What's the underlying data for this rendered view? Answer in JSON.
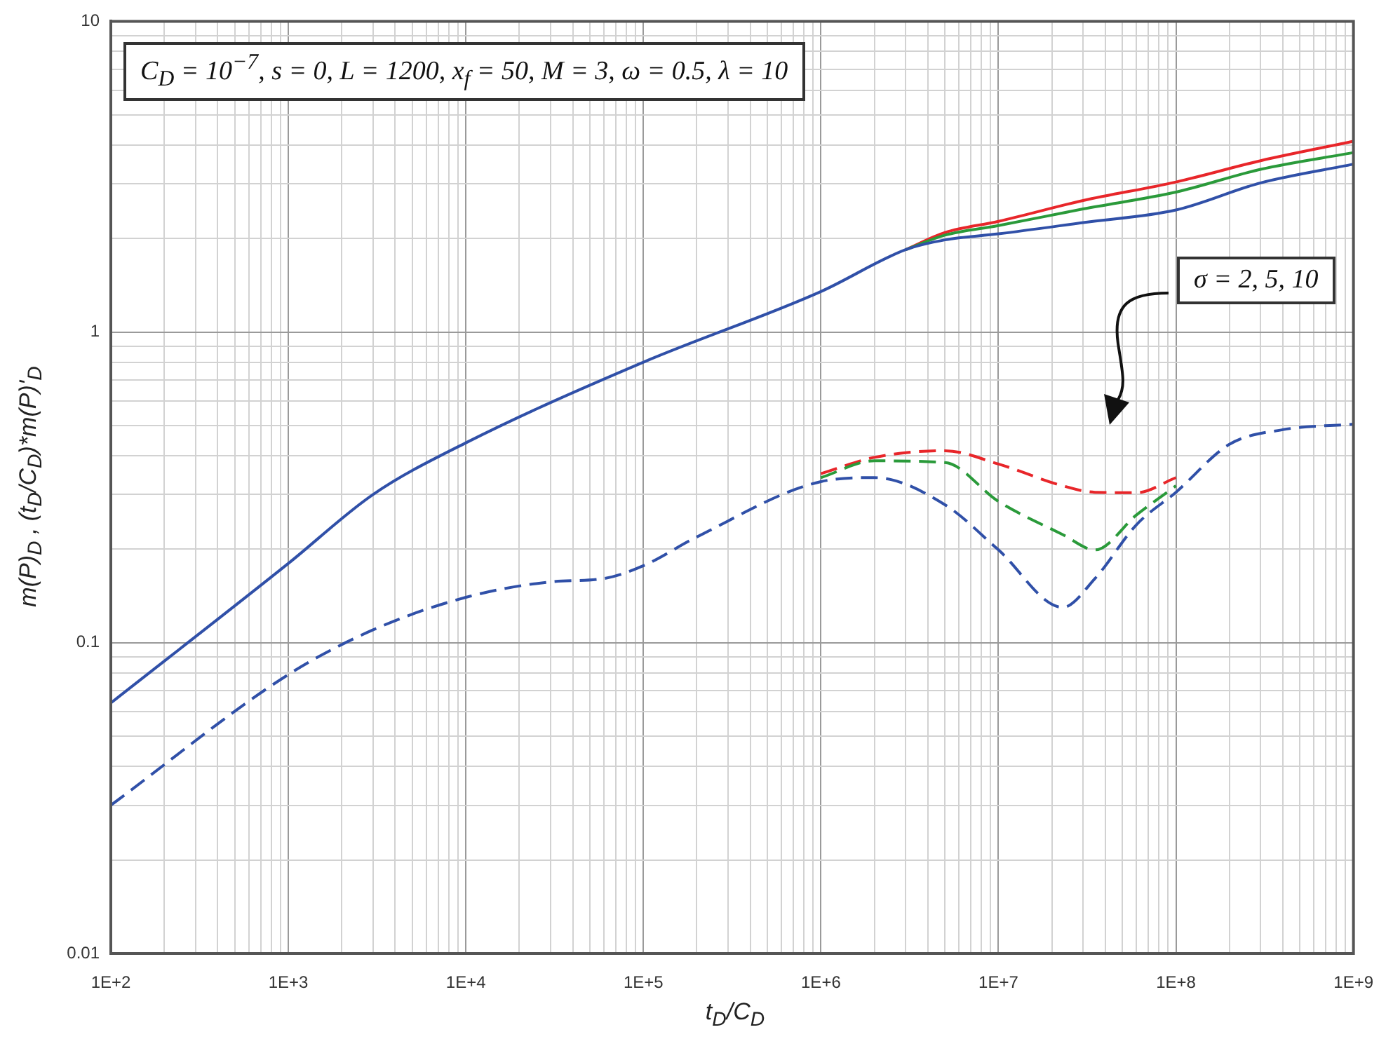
{
  "chart_data": {
    "type": "line",
    "xlabel": "t$_{D}$/C$_{D}$",
    "ylabel": "m(P)$_{D}$ , (t$_{D}$/C$_{D}$)*m(P)'$_{D}$",
    "annotations": [
      "C$_{D}$ = 10$^{−7}$, s = 0, L = 1200, x$_{f}$ = 50, M = 3, ω = 0.5, λ = 10",
      "σ = 2, 5, 10"
    ],
    "log": "xy",
    "grid": true,
    "legend": false,
    "marker": "none",
    "xlim": [
      100,
      1000000000
    ],
    "ylim": [
      0.01,
      10
    ],
    "xticks": [
      {
        "value": 100,
        "label": "1E+2"
      },
      {
        "value": 200,
        "label": null
      },
      {
        "value": 300,
        "label": null
      },
      {
        "value": 400,
        "label": null
      },
      {
        "value": 500,
        "label": null
      },
      {
        "value": 600,
        "label": null
      },
      {
        "value": 700,
        "label": null
      },
      {
        "value": 800,
        "label": null
      },
      {
        "value": 900,
        "label": null
      },
      {
        "value": 1000,
        "label": "1E+3"
      },
      {
        "value": 2000,
        "label": null
      },
      {
        "value": 3000,
        "label": null
      },
      {
        "value": 4000,
        "label": null
      },
      {
        "value": 5000,
        "label": null
      },
      {
        "value": 6000,
        "label": null
      },
      {
        "value": 7000,
        "label": null
      },
      {
        "value": 8000,
        "label": null
      },
      {
        "value": 9000,
        "label": null
      },
      {
        "value": 10000,
        "label": "1E+4"
      },
      {
        "value": 20000,
        "label": null
      },
      {
        "value": 30000,
        "label": null
      },
      {
        "value": 40000,
        "label": null
      },
      {
        "value": 50000,
        "label": null
      },
      {
        "value": 60000,
        "label": null
      },
      {
        "value": 70000,
        "label": null
      },
      {
        "value": 80000,
        "label": null
      },
      {
        "value": 90000,
        "label": null
      },
      {
        "value": 100000,
        "label": "1E+5"
      },
      {
        "value": 200000,
        "label": null
      },
      {
        "value": 300000,
        "label": null
      },
      {
        "value": 400000,
        "label": null
      },
      {
        "value": 500000,
        "label": null
      },
      {
        "value": 600000,
        "label": null
      },
      {
        "value": 700000,
        "label": null
      },
      {
        "value": 800000,
        "label": null
      },
      {
        "value": 900000,
        "label": null
      },
      {
        "value": 1000000,
        "label": "1E+6"
      },
      {
        "value": 2000000,
        "label": null
      },
      {
        "value": 3000000,
        "label": null
      },
      {
        "value": 4000000,
        "label": null
      },
      {
        "value": 5000000,
        "label": null
      },
      {
        "value": 6000000,
        "label": null
      },
      {
        "value": 7000000,
        "label": null
      },
      {
        "value": 8000000,
        "label": null
      },
      {
        "value": 9000000,
        "label": null
      },
      {
        "value": 10000000,
        "label": "1E+7"
      },
      {
        "value": 20000000,
        "label": null
      },
      {
        "value": 30000000,
        "label": null
      },
      {
        "value": 40000000,
        "label": null
      },
      {
        "value": 50000000,
        "label": null
      },
      {
        "value": 60000000,
        "label": null
      },
      {
        "value": 70000000,
        "label": null
      },
      {
        "value": 80000000,
        "label": null
      },
      {
        "value": 90000000,
        "label": null
      },
      {
        "value": 100000000,
        "label": "1E+8"
      },
      {
        "value": 200000000,
        "label": null
      },
      {
        "value": 300000000,
        "label": null
      },
      {
        "value": 400000000,
        "label": null
      },
      {
        "value": 500000000,
        "label": null
      },
      {
        "value": 600000000,
        "label": null
      },
      {
        "value": 700000000,
        "label": null
      },
      {
        "value": 800000000,
        "label": null
      },
      {
        "value": 900000000,
        "label": null
      },
      {
        "value": 1000000000,
        "label": "1E+9"
      }
    ],
    "yticks": [
      0.01,
      {
        "value": 0.02,
        "label": null
      },
      {
        "value": 0.03,
        "label": null
      },
      {
        "value": 0.04,
        "label": null
      },
      {
        "value": 0.05,
        "label": null
      },
      {
        "value": 0.06,
        "label": null
      },
      {
        "value": 0.07,
        "label": null
      },
      {
        "value": 0.08,
        "label": null
      },
      {
        "value": 0.09,
        "label": null
      },
      0.1,
      {
        "value": 0.2,
        "label": null
      },
      {
        "value": 0.3,
        "label": null
      },
      {
        "value": 0.4,
        "label": null
      },
      {
        "value": 0.5,
        "label": null
      },
      {
        "value": 0.6,
        "label": null
      },
      {
        "value": 0.7,
        "label": null
      },
      {
        "value": 0.8,
        "label": null
      },
      {
        "value": 0.9,
        "label": null
      },
      1,
      {
        "value": 2,
        "label": null
      },
      {
        "value": 3,
        "label": null
      },
      {
        "value": 4,
        "label": null
      },
      {
        "value": 5,
        "label": null
      },
      {
        "value": 6,
        "label": null
      },
      {
        "value": 7,
        "label": null
      },
      {
        "value": 8,
        "label": null
      },
      {
        "value": 9,
        "label": null
      },
      10
    ],
    "series": [
      {
        "color": "#e8262a",
        "line_style": "solid",
        "x": [
          3000000,
          5000000,
          10000000,
          30000000,
          100000000,
          300000000,
          1000000000
        ],
        "values": [
          1.84,
          2.09,
          2.27,
          2.65,
          3.04,
          3.56,
          4.11
        ]
      },
      {
        "color": "#2a9a3a",
        "line_style": "solid",
        "x": [
          3000000,
          5000000,
          10000000,
          30000000,
          100000000,
          300000000,
          1000000000
        ],
        "values": [
          1.84,
          2.05,
          2.2,
          2.49,
          2.82,
          3.34,
          3.78
        ]
      },
      {
        "color": "#3050a8",
        "line_style": "solid",
        "x": [
          100,
          1000,
          3000,
          10000,
          100000,
          1000000,
          3000000,
          5000000,
          10000000,
          30000000,
          100000000,
          300000000,
          1000000000
        ],
        "values": [
          0.064,
          0.18,
          0.3,
          0.44,
          0.8,
          1.35,
          1.84,
          1.98,
          2.07,
          2.25,
          2.47,
          3.02,
          3.47
        ]
      },
      {
        "color": "#e8262a",
        "line_style": "dashed",
        "x": [
          1000000,
          2000000,
          5000000,
          10000000,
          23000000,
          35000000,
          60000000,
          100000000
        ],
        "values": [
          0.35,
          0.395,
          0.415,
          0.376,
          0.32,
          0.305,
          0.304,
          0.34
        ]
      },
      {
        "color": "#2a9a3a",
        "line_style": "dashed",
        "x": [
          1000000,
          2000000,
          5000000,
          10000000,
          23000000,
          35000000,
          60000000,
          100000000
        ],
        "values": [
          0.34,
          0.385,
          0.38,
          0.285,
          0.223,
          0.199,
          0.258,
          0.32
        ]
      },
      {
        "color": "#3050a8",
        "line_style": "dashed",
        "x": [
          100,
          1000,
          3000,
          10000,
          30000,
          60000,
          100000,
          200000,
          1000000,
          2000000,
          5000000,
          10000000,
          23000000,
          35000000,
          60000000,
          100000000,
          200000000,
          400000000,
          1000000000
        ],
        "values": [
          0.03,
          0.079,
          0.11,
          0.14,
          0.157,
          0.161,
          0.177,
          0.219,
          0.33,
          0.34,
          0.278,
          0.199,
          0.13,
          0.161,
          0.24,
          0.305,
          0.435,
          0.485,
          0.505
        ]
      }
    ]
  }
}
